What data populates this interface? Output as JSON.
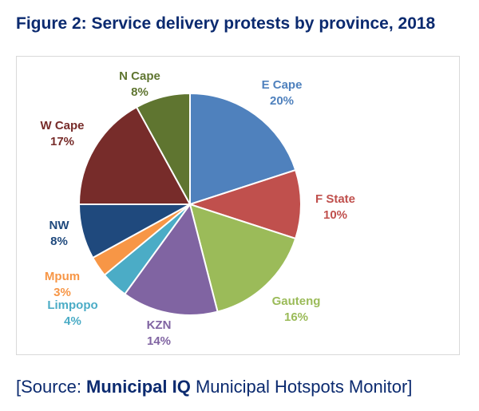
{
  "title": "Figure 2: Service delivery protests by province, 2018",
  "source": {
    "prefix": "[Source: ",
    "bold": "Municipal IQ",
    "suffix": " Municipal Hotspots Monitor]"
  },
  "chart_data": {
    "type": "pie",
    "title": "Figure 2: Service delivery protests by province, 2018",
    "slices": [
      {
        "label": "E Cape",
        "value": 20,
        "display": "20%",
        "color": "#4f81bd"
      },
      {
        "label": "F State",
        "value": 10,
        "display": "10%",
        "color": "#c0504d"
      },
      {
        "label": "Gauteng",
        "value": 16,
        "display": "16%",
        "color": "#9bbb59"
      },
      {
        "label": "KZN",
        "value": 14,
        "display": "14%",
        "color": "#8064a2"
      },
      {
        "label": "Limpopo",
        "value": 4,
        "display": "4%",
        "color": "#4bacc6"
      },
      {
        "label": "Mpum",
        "value": 3,
        "display": "3%",
        "color": "#f79646"
      },
      {
        "label": "NW",
        "value": 8,
        "display": "8%",
        "color": "#1f497d"
      },
      {
        "label": "W Cape",
        "value": 17,
        "display": "17%",
        "color": "#772c2a"
      },
      {
        "label": "N Cape",
        "value": 8,
        "display": "8%",
        "color": "#5f7530"
      }
    ]
  }
}
